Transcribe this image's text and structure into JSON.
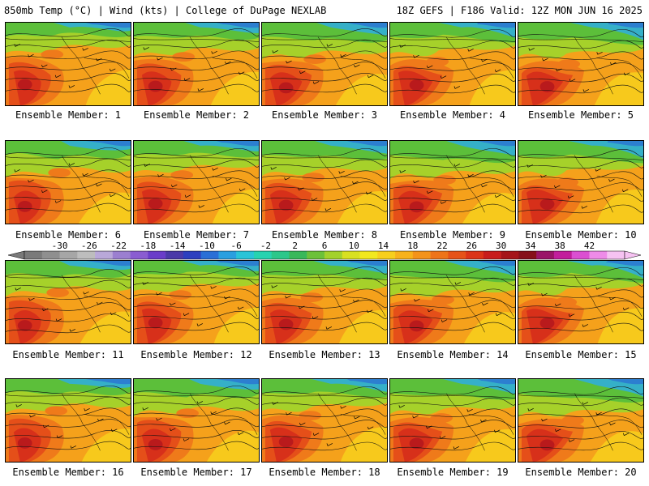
{
  "header": {
    "left": "850mb Temp (°C) | Wind (kts) | College of DuPage NEXLAB",
    "right": "18Z GEFS | F186 Valid: 12Z MON JUN 16 2025"
  },
  "members": [
    "Ensemble Member: 1",
    "Ensemble Member: 2",
    "Ensemble Member: 3",
    "Ensemble Member: 4",
    "Ensemble Member: 5",
    "Ensemble Member: 6",
    "Ensemble Member: 7",
    "Ensemble Member: 8",
    "Ensemble Member: 9",
    "Ensemble Member: 10",
    "Ensemble Member: 11",
    "Ensemble Member: 12",
    "Ensemble Member: 13",
    "Ensemble Member: 14",
    "Ensemble Member: 15",
    "Ensemble Member: 16",
    "Ensemble Member: 17",
    "Ensemble Member: 18",
    "Ensemble Member: 19",
    "Ensemble Member: 20"
  ],
  "colorbar": {
    "labels": [
      "-30",
      "-26",
      "-22",
      "-18",
      "-14",
      "-10",
      "-6",
      "-2",
      "2",
      "6",
      "10",
      "14",
      "18",
      "22",
      "26",
      "30",
      "34",
      "38",
      "42"
    ],
    "colors": [
      "#7a7a7a",
      "#8f8f8f",
      "#a6a6a6",
      "#bdbdbd",
      "#b9a8d9",
      "#9b7fd0",
      "#8a5cd1",
      "#6a3dc9",
      "#4b3aa8",
      "#2d3fbf",
      "#2a6fd6",
      "#2a9fe0",
      "#29c4d8",
      "#27d3b0",
      "#2cc78a",
      "#39b85a",
      "#6cc13a",
      "#a3d12c",
      "#d8e021",
      "#f2e81e",
      "#f7cf1d",
      "#f7b21c",
      "#f3931b",
      "#ee741a",
      "#e65319",
      "#dc3418",
      "#c81d1d",
      "#a51419",
      "#86101a",
      "#9a1568",
      "#c21e9c",
      "#db4fd1",
      "#ee8be8",
      "#f6c2f2"
    ]
  }
}
